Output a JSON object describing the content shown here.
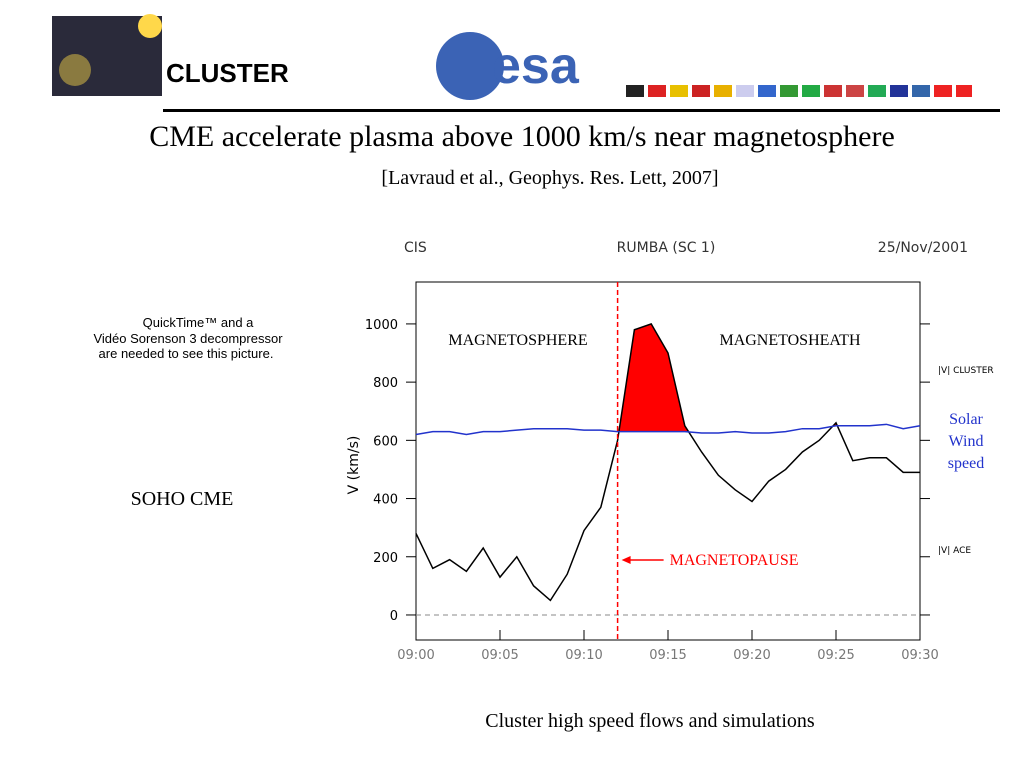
{
  "header": {
    "mission": "CLUSTER",
    "agency": "esa"
  },
  "title": "CME accelerate plasma above 1000 km/s near magnetosphere",
  "citation": "[Lavraud et al., Geophys. Res. Lett, 2007]",
  "placeholder": [
    "QuickTime™ and a",
    "Vidéo Sorenson 3 decompressor",
    "are needed to see this picture."
  ],
  "left_label": "SOHO CME",
  "caption": "Cluster high speed flows and simulations",
  "chart_data": {
    "type": "line",
    "header_left": "CIS",
    "header_center": "RUMBA (SC 1)",
    "header_right": "25/Nov/2001",
    "y_label": "V (km/s)",
    "x": [
      "09:00",
      "09:01",
      "09:02",
      "09:03",
      "09:04",
      "09:05",
      "09:06",
      "09:07",
      "09:08",
      "09:09",
      "09:10",
      "09:11",
      "09:12",
      "09:13",
      "09:14",
      "09:15",
      "09:16",
      "09:17",
      "09:18",
      "09:19",
      "09:20",
      "09:21",
      "09:22",
      "09:23",
      "09:24",
      "09:25",
      "09:26",
      "09:27",
      "09:28",
      "09:29",
      "09:30"
    ],
    "series": [
      {
        "name": "|V| CLUSTER",
        "color": "#000000",
        "values": [
          280,
          160,
          190,
          150,
          230,
          130,
          200,
          100,
          50,
          140,
          290,
          370,
          600,
          980,
          1000,
          900,
          650,
          560,
          480,
          430,
          390,
          460,
          500,
          560,
          600,
          660,
          530,
          540,
          540,
          490,
          490
        ]
      },
      {
        "name": "|V| ACE",
        "color": "#2233cc",
        "values": [
          620,
          630,
          630,
          620,
          630,
          630,
          635,
          640,
          640,
          640,
          635,
          635,
          630,
          630,
          630,
          630,
          630,
          625,
          625,
          630,
          625,
          625,
          630,
          640,
          640,
          650,
          650,
          650,
          655,
          640,
          650
        ]
      }
    ],
    "fill_color": "#ff0000",
    "xticks": [
      "09:00",
      "09:05",
      "09:10",
      "09:15",
      "09:20",
      "09:25",
      "09:30"
    ],
    "ylim": [
      -86,
      1144
    ],
    "yticks": [
      0,
      200,
      400,
      600,
      800,
      1000
    ],
    "regions": [
      "MAGNETOSPHERE",
      "MAGNETOSHEATH"
    ],
    "boundary": {
      "x": "09:12",
      "label": "MAGNETOPAUSE",
      "color": "#ff0000"
    },
    "note": [
      "Solar",
      "Wind",
      "speed"
    ]
  }
}
